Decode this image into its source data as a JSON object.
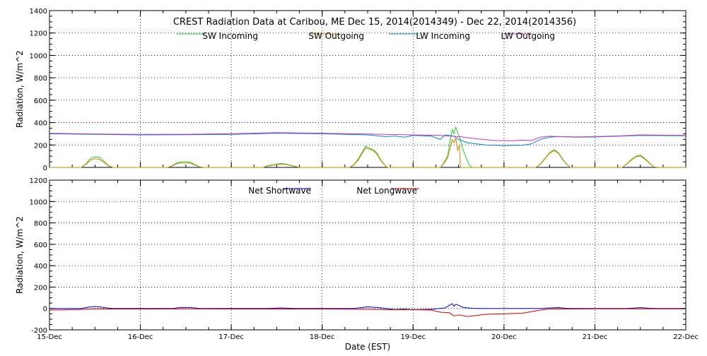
{
  "title": "CREST Radiation Data at Caribou, ME   Dec 15, 2014(2014349) - Dec 22, 2014(2014356)",
  "x_axis": {
    "label": "Date (EST)",
    "range_days": [
      0,
      7
    ],
    "tick_labels": [
      "15-Dec",
      "16-Dec",
      "17-Dec",
      "18-Dec",
      "19-Dec",
      "20-Dec",
      "21-Dec",
      "22-Dec"
    ]
  },
  "chart_data": [
    {
      "type": "line",
      "name": "top",
      "ylabel": "Radiation, W/m^2",
      "ylim": [
        0,
        1400
      ],
      "yticks": [
        0,
        200,
        400,
        600,
        800,
        1000,
        1200,
        1400
      ],
      "grid": true,
      "series": [
        {
          "name": "SW Incoming",
          "color": "#22cc22",
          "points": [
            [
              0,
              0
            ],
            [
              0.35,
              0
            ],
            [
              0.4,
              30
            ],
            [
              0.45,
              80
            ],
            [
              0.5,
              95
            ],
            [
              0.55,
              90
            ],
            [
              0.6,
              55
            ],
            [
              0.65,
              15
            ],
            [
              0.7,
              0
            ],
            [
              1.3,
              0
            ],
            [
              1.35,
              15
            ],
            [
              1.4,
              40
            ],
            [
              1.45,
              50
            ],
            [
              1.5,
              50
            ],
            [
              1.55,
              45
            ],
            [
              1.6,
              25
            ],
            [
              1.65,
              5
            ],
            [
              1.7,
              0
            ],
            [
              2.35,
              0
            ],
            [
              2.4,
              15
            ],
            [
              2.5,
              30
            ],
            [
              2.55,
              35
            ],
            [
              2.6,
              30
            ],
            [
              2.7,
              10
            ],
            [
              2.75,
              0
            ],
            [
              3.3,
              0
            ],
            [
              3.35,
              25
            ],
            [
              3.4,
              80
            ],
            [
              3.45,
              150
            ],
            [
              3.48,
              190
            ],
            [
              3.52,
              170
            ],
            [
              3.56,
              160
            ],
            [
              3.6,
              130
            ],
            [
              3.65,
              60
            ],
            [
              3.7,
              10
            ],
            [
              3.72,
              0
            ],
            [
              4.3,
              0
            ],
            [
              4.33,
              30
            ],
            [
              4.38,
              100
            ],
            [
              4.41,
              250
            ],
            [
              4.43,
              340
            ],
            [
              4.45,
              300
            ],
            [
              4.47,
              360
            ],
            [
              4.5,
              290
            ],
            [
              4.52,
              250
            ],
            [
              4.54,
              180
            ],
            [
              4.58,
              90
            ],
            [
              4.62,
              20
            ],
            [
              4.65,
              0
            ],
            [
              5.35,
              0
            ],
            [
              5.4,
              30
            ],
            [
              5.45,
              80
            ],
            [
              5.5,
              130
            ],
            [
              5.55,
              160
            ],
            [
              5.6,
              130
            ],
            [
              5.65,
              70
            ],
            [
              5.7,
              20
            ],
            [
              5.73,
              0
            ],
            [
              6.3,
              0
            ],
            [
              6.35,
              30
            ],
            [
              6.4,
              70
            ],
            [
              6.45,
              100
            ],
            [
              6.5,
              110
            ],
            [
              6.55,
              80
            ],
            [
              6.6,
              40
            ],
            [
              6.65,
              5
            ],
            [
              6.7,
              0
            ],
            [
              7,
              0
            ]
          ]
        },
        {
          "name": "SW Outgoing",
          "color": "#cc8800",
          "points": [
            [
              0,
              0
            ],
            [
              0.35,
              0
            ],
            [
              0.4,
              25
            ],
            [
              0.45,
              65
            ],
            [
              0.5,
              78
            ],
            [
              0.55,
              72
            ],
            [
              0.6,
              45
            ],
            [
              0.65,
              12
            ],
            [
              0.7,
              0
            ],
            [
              1.3,
              0
            ],
            [
              1.35,
              12
            ],
            [
              1.4,
              32
            ],
            [
              1.45,
              40
            ],
            [
              1.5,
              40
            ],
            [
              1.55,
              36
            ],
            [
              1.6,
              20
            ],
            [
              1.65,
              4
            ],
            [
              1.7,
              0
            ],
            [
              2.35,
              0
            ],
            [
              2.4,
              12
            ],
            [
              2.5,
              26
            ],
            [
              2.55,
              30
            ],
            [
              2.6,
              26
            ],
            [
              2.7,
              8
            ],
            [
              2.75,
              0
            ],
            [
              3.3,
              0
            ],
            [
              3.35,
              22
            ],
            [
              3.4,
              70
            ],
            [
              3.45,
              140
            ],
            [
              3.48,
              175
            ],
            [
              3.52,
              160
            ],
            [
              3.56,
              150
            ],
            [
              3.6,
              120
            ],
            [
              3.65,
              55
            ],
            [
              3.7,
              8
            ],
            [
              3.72,
              0
            ],
            [
              4.3,
              0
            ],
            [
              4.33,
              25
            ],
            [
              4.38,
              85
            ],
            [
              4.41,
              180
            ],
            [
              4.43,
              250
            ],
            [
              4.45,
              220
            ],
            [
              4.47,
              260
            ],
            [
              4.49,
              150
            ],
            [
              4.51,
              200
            ],
            [
              4.52,
              0
            ],
            [
              5.35,
              0
            ],
            [
              5.4,
              28
            ],
            [
              5.45,
              75
            ],
            [
              5.5,
              125
            ],
            [
              5.55,
              150
            ],
            [
              5.6,
              125
            ],
            [
              5.65,
              65
            ],
            [
              5.7,
              18
            ],
            [
              5.73,
              0
            ],
            [
              6.3,
              0
            ],
            [
              6.35,
              28
            ],
            [
              6.4,
              65
            ],
            [
              6.45,
              95
            ],
            [
              6.5,
              100
            ],
            [
              6.55,
              75
            ],
            [
              6.6,
              35
            ],
            [
              6.65,
              4
            ],
            [
              6.7,
              0
            ],
            [
              7,
              0
            ]
          ]
        },
        {
          "name": "LW Incoming",
          "color": "#0088cc",
          "points": [
            [
              0,
              300
            ],
            [
              0.5,
              295
            ],
            [
              1,
              290
            ],
            [
              1.5,
              292
            ],
            [
              2,
              295
            ],
            [
              2.5,
              305
            ],
            [
              3,
              300
            ],
            [
              3.5,
              290
            ],
            [
              3.7,
              275
            ],
            [
              3.8,
              280
            ],
            [
              3.9,
              270
            ],
            [
              4,
              285
            ],
            [
              4.2,
              280
            ],
            [
              4.3,
              250
            ],
            [
              4.35,
              290
            ],
            [
              4.45,
              280
            ],
            [
              4.5,
              250
            ],
            [
              4.6,
              220
            ],
            [
              4.8,
              200
            ],
            [
              5,
              195
            ],
            [
              5.2,
              198
            ],
            [
              5.3,
              210
            ],
            [
              5.4,
              250
            ],
            [
              5.5,
              270
            ],
            [
              5.6,
              275
            ],
            [
              5.8,
              270
            ],
            [
              6,
              272
            ],
            [
              6.3,
              280
            ],
            [
              6.5,
              285
            ],
            [
              7,
              282
            ]
          ]
        },
        {
          "name": "LW Outgoing",
          "color": "#cc33cc",
          "points": [
            [
              0,
              305
            ],
            [
              0.5,
              298
            ],
            [
              1,
              295
            ],
            [
              1.5,
              296
            ],
            [
              2,
              300
            ],
            [
              2.5,
              310
            ],
            [
              3,
              305
            ],
            [
              3.5,
              298
            ],
            [
              4,
              290
            ],
            [
              4.3,
              285
            ],
            [
              4.5,
              275
            ],
            [
              4.7,
              255
            ],
            [
              4.9,
              240
            ],
            [
              5.1,
              238
            ],
            [
              5.2,
              245
            ],
            [
              5.3,
              240
            ],
            [
              5.4,
              270
            ],
            [
              5.5,
              278
            ],
            [
              5.6,
              275
            ],
            [
              5.8,
              272
            ],
            [
              6,
              275
            ],
            [
              6.3,
              282
            ],
            [
              6.5,
              290
            ],
            [
              7,
              285
            ]
          ]
        }
      ]
    },
    {
      "type": "line",
      "name": "bottom",
      "ylabel": "Radiation, W/m^2",
      "ylim": [
        -200,
        1200
      ],
      "yticks": [
        -200,
        0,
        200,
        400,
        600,
        800,
        1000,
        1200
      ],
      "grid": true,
      "series": [
        {
          "name": "Net Shortwave",
          "color": "#0000cc",
          "points": [
            [
              0,
              0
            ],
            [
              0.35,
              0
            ],
            [
              0.45,
              15
            ],
            [
              0.5,
              18
            ],
            [
              0.55,
              15
            ],
            [
              0.65,
              3
            ],
            [
              0.7,
              0
            ],
            [
              1.35,
              0
            ],
            [
              1.45,
              10
            ],
            [
              1.55,
              9
            ],
            [
              1.65,
              1
            ],
            [
              1.7,
              0
            ],
            [
              2.4,
              0
            ],
            [
              2.55,
              5
            ],
            [
              2.7,
              0
            ],
            [
              3.35,
              0
            ],
            [
              3.45,
              10
            ],
            [
              3.5,
              15
            ],
            [
              3.6,
              10
            ],
            [
              3.7,
              0
            ],
            [
              3.8,
              -10
            ],
            [
              3.9,
              -5
            ],
            [
              4,
              -12
            ],
            [
              4.2,
              -8
            ],
            [
              4.35,
              5
            ],
            [
              4.4,
              30
            ],
            [
              4.43,
              45
            ],
            [
              4.45,
              20
            ],
            [
              4.47,
              40
            ],
            [
              4.5,
              30
            ],
            [
              4.55,
              10
            ],
            [
              4.6,
              5
            ],
            [
              4.7,
              0
            ],
            [
              5.4,
              0
            ],
            [
              5.5,
              5
            ],
            [
              5.6,
              8
            ],
            [
              5.7,
              0
            ],
            [
              6.35,
              0
            ],
            [
              6.45,
              5
            ],
            [
              6.5,
              8
            ],
            [
              6.6,
              2
            ],
            [
              6.7,
              0
            ],
            [
              7,
              0
            ]
          ]
        },
        {
          "name": "Net Longwave",
          "color": "#cc0000",
          "points": [
            [
              0,
              -15
            ],
            [
              0.3,
              -10
            ],
            [
              0.5,
              -5
            ],
            [
              1,
              -5
            ],
            [
              1.5,
              -4
            ],
            [
              2,
              -5
            ],
            [
              2.5,
              -5
            ],
            [
              3,
              -5
            ],
            [
              3.5,
              -8
            ],
            [
              3.8,
              -12
            ],
            [
              4,
              -10
            ],
            [
              4.2,
              -15
            ],
            [
              4.3,
              -35
            ],
            [
              4.4,
              -40
            ],
            [
              4.45,
              -70
            ],
            [
              4.5,
              -60
            ],
            [
              4.6,
              -75
            ],
            [
              4.8,
              -55
            ],
            [
              5,
              -50
            ],
            [
              5.2,
              -45
            ],
            [
              5.3,
              -30
            ],
            [
              5.4,
              -15
            ],
            [
              5.5,
              -5
            ],
            [
              5.7,
              -5
            ],
            [
              6,
              -3
            ],
            [
              6.5,
              -3
            ],
            [
              7,
              -4
            ]
          ]
        }
      ]
    }
  ]
}
